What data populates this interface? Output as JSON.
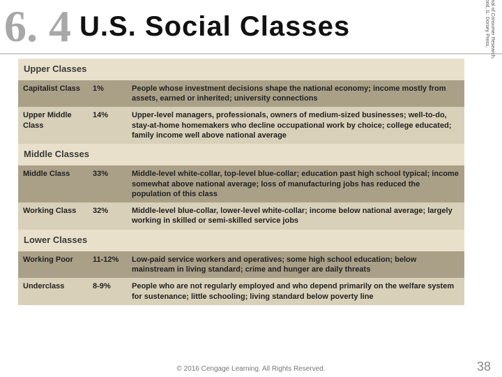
{
  "header": {
    "chapter": "6. 4",
    "title": "U.S. Social Classes"
  },
  "table": {
    "colors": {
      "section_bg": "#e8e0cb",
      "dark_bg": "#aaa088",
      "light_bg": "#d8d0b8",
      "text": "#222222"
    },
    "sections": {
      "upper": "Upper Classes",
      "middle": "Middle Classes",
      "lower": "Lower Classes"
    },
    "rows": {
      "capitalist": {
        "name": "Capitalist Class",
        "pct": "1%",
        "desc": "People whose investment decisions shape the national economy; income mostly from assets, earned or inherited; university connections"
      },
      "uppermiddle": {
        "name": "Upper Middle Class",
        "pct": "14%",
        "desc": "Upper-level managers, professionals, owners of medium-sized businesses; well-to-do, stay-at-home homemakers who decline occupational work by choice; college educated; family income well above national average"
      },
      "middle": {
        "name": "Middle Class",
        "pct": "33%",
        "desc": "Middle-level white-collar, top-level blue-collar; education past high school typical; income somewhat above national average; loss of manufacturing jobs has reduced the population of this class"
      },
      "working": {
        "name": "Working Class",
        "pct": "32%",
        "desc": "Middle-level blue-collar, lower-level white-collar; income below national average; largely working in skilled or semi-skilled service jobs"
      },
      "workingpoor": {
        "name": "Working Poor",
        "pct": "11-12%",
        "desc": "Low-paid service workers and operatives; some high school education; below mainstream in living standard; crime and hunger are daily threats"
      },
      "underclass": {
        "name": "Underclass",
        "pct": "8-9%",
        "desc": "People who are not regularly employed and who depend primarily on the welfare system for sustenance; little schooling; living standard below poverty line"
      }
    }
  },
  "source": "SOURCE: Adapted from Richard P. Coleman, \"The Continuing Significance of Social Class to Marketing,\" Journal of Consumer Research, December 1983, 267; Dennis Gilbert and Joseph A. Kahl, The American Class Structure: A Synthesis (Homewood, IL: Dorsey Press, 1982), ch. 11.",
  "footer": {
    "copyright": "© 2016 Cengage Learning. All Rights Reserved.",
    "page": "38"
  }
}
